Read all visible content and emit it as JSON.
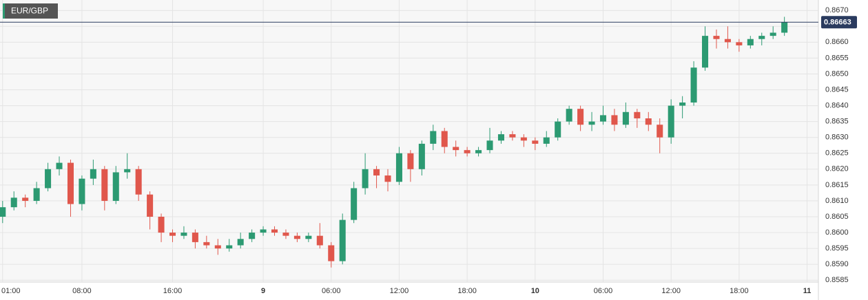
{
  "chart_data": {
    "type": "candlestick",
    "title": "EUR/GBP",
    "x": [
      1,
      2,
      3,
      4,
      5,
      6,
      7,
      8,
      9,
      10,
      11,
      12,
      13,
      14,
      15,
      16,
      17,
      18,
      19,
      20,
      21,
      22,
      23,
      24,
      25,
      26,
      27,
      28,
      29,
      30,
      31,
      32,
      33,
      34,
      35,
      36,
      37,
      38,
      39,
      40,
      41,
      42,
      43,
      44,
      45,
      46,
      47,
      48,
      49,
      50,
      51,
      52,
      53,
      54,
      55,
      56,
      57,
      58,
      59,
      60,
      61,
      62,
      63,
      64,
      65,
      66,
      67,
      68,
      69,
      70
    ],
    "open": [
      0.8605,
      0.8608,
      0.8611,
      0.861,
      0.8614,
      0.862,
      0.8622,
      0.8609,
      0.8617,
      0.862,
      0.861,
      0.8619,
      0.862,
      0.8612,
      0.8605,
      0.86,
      0.8599,
      0.86,
      0.8597,
      0.8596,
      0.8595,
      0.8596,
      0.8598,
      0.86,
      0.8601,
      0.86,
      0.8599,
      0.8598,
      0.8599,
      0.8596,
      0.8591,
      0.8604,
      0.8614,
      0.862,
      0.8618,
      0.8616,
      0.8625,
      0.862,
      0.8628,
      0.8632,
      0.8627,
      0.8626,
      0.8625,
      0.8626,
      0.8629,
      0.8631,
      0.863,
      0.8629,
      0.8628,
      0.863,
      0.8635,
      0.8639,
      0.8634,
      0.8635,
      0.8637,
      0.8634,
      0.8638,
      0.8636,
      0.8634,
      0.863,
      0.864,
      0.8641,
      0.8652,
      0.8662,
      0.8661,
      0.866,
      0.8659,
      0.8661,
      0.8662,
      0.8663
    ],
    "high": [
      0.861,
      0.8613,
      0.8612,
      0.8616,
      0.8622,
      0.8624,
      0.8623,
      0.8618,
      0.8623,
      0.8621,
      0.8621,
      0.8625,
      0.8621,
      0.8613,
      0.8606,
      0.8601,
      0.8602,
      0.8601,
      0.8599,
      0.8598,
      0.8598,
      0.86,
      0.8601,
      0.8602,
      0.8602,
      0.8601,
      0.86,
      0.86,
      0.8603,
      0.8597,
      0.8606,
      0.8616,
      0.8625,
      0.8621,
      0.862,
      0.8627,
      0.8626,
      0.8629,
      0.8634,
      0.8633,
      0.8629,
      0.8627,
      0.8627,
      0.8633,
      0.8632,
      0.8632,
      0.8631,
      0.863,
      0.8632,
      0.8636,
      0.864,
      0.864,
      0.8638,
      0.864,
      0.8639,
      0.8641,
      0.8639,
      0.8638,
      0.8636,
      0.8642,
      0.8643,
      0.8654,
      0.8665,
      0.8664,
      0.8665,
      0.8661,
      0.8662,
      0.8663,
      0.8665,
      0.8668
    ],
    "low": [
      0.8603,
      0.8607,
      0.8608,
      0.8609,
      0.8613,
      0.8618,
      0.8605,
      0.8607,
      0.8615,
      0.8607,
      0.8609,
      0.8617,
      0.861,
      0.8601,
      0.8597,
      0.8597,
      0.8598,
      0.8595,
      0.8595,
      0.8593,
      0.8594,
      0.8595,
      0.8597,
      0.8599,
      0.8599,
      0.8598,
      0.8597,
      0.8597,
      0.8595,
      0.8589,
      0.859,
      0.8603,
      0.8612,
      0.8614,
      0.8613,
      0.8615,
      0.8616,
      0.8618,
      0.8626,
      0.8625,
      0.8624,
      0.8624,
      0.8624,
      0.8625,
      0.8628,
      0.8629,
      0.8627,
      0.8626,
      0.8627,
      0.8629,
      0.8634,
      0.8632,
      0.8632,
      0.8634,
      0.8632,
      0.8633,
      0.8633,
      0.8632,
      0.8625,
      0.8628,
      0.8636,
      0.864,
      0.8651,
      0.8658,
      0.8658,
      0.8657,
      0.8658,
      0.8659,
      0.8661,
      0.8662
    ],
    "close": [
      0.8608,
      0.8611,
      0.861,
      0.8614,
      0.862,
      0.8622,
      0.8609,
      0.8617,
      0.862,
      0.861,
      0.8619,
      0.862,
      0.8612,
      0.8605,
      0.86,
      0.8599,
      0.86,
      0.8597,
      0.8596,
      0.8595,
      0.8596,
      0.8598,
      0.86,
      0.8601,
      0.86,
      0.8599,
      0.8598,
      0.8599,
      0.8596,
      0.8591,
      0.8604,
      0.8614,
      0.862,
      0.8618,
      0.8616,
      0.8625,
      0.862,
      0.8628,
      0.8632,
      0.8627,
      0.8626,
      0.8625,
      0.8626,
      0.8629,
      0.8631,
      0.863,
      0.8629,
      0.8628,
      0.863,
      0.8635,
      0.8639,
      0.8634,
      0.8635,
      0.8637,
      0.8634,
      0.8638,
      0.8636,
      0.8634,
      0.863,
      0.864,
      0.8641,
      0.8652,
      0.8662,
      0.8661,
      0.866,
      0.8659,
      0.8661,
      0.8662,
      0.8663,
      0.86663
    ],
    "up_color": "#2c9a72",
    "down_color": "#e0574c",
    "last_price": 0.86663,
    "last_price_color": "#2a3b5f",
    "xlim": [
      0.77,
      73
    ],
    "xticks": [
      {
        "value": 1,
        "label": "01:00"
      },
      {
        "value": 8,
        "label": "08:00"
      },
      {
        "value": 16,
        "label": "16:00"
      },
      {
        "value": 24,
        "label": "9"
      },
      {
        "value": 30,
        "label": "06:00"
      },
      {
        "value": 36,
        "label": "12:00"
      },
      {
        "value": 42,
        "label": "18:00"
      },
      {
        "value": 48,
        "label": "10"
      },
      {
        "value": 54,
        "label": "06:00"
      },
      {
        "value": 60,
        "label": "12:00"
      },
      {
        "value": 66,
        "label": "18:00"
      },
      {
        "value": 72,
        "label": "11"
      }
    ],
    "ylim": [
      0.85844,
      0.86733
    ],
    "yticks": [
      0.8585,
      {
        "value": 0.859,
        "label": "0.8590"
      },
      0.8595,
      {
        "value": 0.86,
        "label": "0.8600"
      },
      0.8605,
      {
        "value": 0.861,
        "label": "0.8610"
      },
      0.8615,
      {
        "value": 0.862,
        "label": "0.8620"
      },
      0.8625,
      {
        "value": 0.863,
        "label": "0.8630"
      },
      0.8635,
      {
        "value": 0.864,
        "label": "0.8640"
      },
      0.8645,
      {
        "value": 0.865,
        "label": "0.8650"
      },
      0.8655,
      {
        "value": 0.866,
        "label": "0.8660"
      },
      0.8665,
      {
        "value": 0.867,
        "label": "0.8670"
      }
    ],
    "grid": true
  }
}
